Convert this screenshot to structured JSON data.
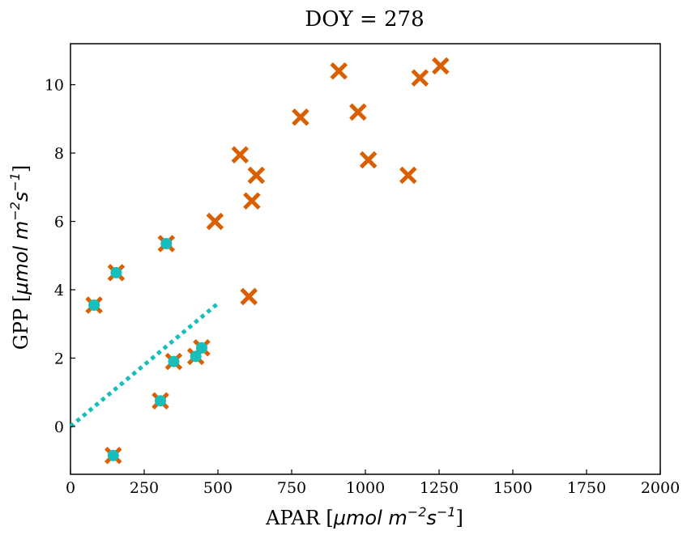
{
  "chart_data": {
    "type": "scatter",
    "title": "DOY = 278",
    "xlabel": {
      "prefix": "APAR [",
      "unit": "μmol m",
      "exp1": "−2",
      "mid": "s",
      "exp2": "−1",
      "suffix": "]"
    },
    "ylabel": {
      "prefix": "GPP [",
      "unit": "μmol m",
      "exp1": "−2",
      "mid": "s",
      "exp2": "−1",
      "suffix": "]"
    },
    "xlim": [
      0,
      2000
    ],
    "ylim": [
      -1.4,
      11.2
    ],
    "xticks": [
      0,
      250,
      500,
      750,
      1000,
      1250,
      1500,
      1750,
      2000
    ],
    "yticks": [
      0,
      2,
      4,
      6,
      8,
      10
    ],
    "grid": false,
    "colors": {
      "cross": "#d95f02",
      "dot": "#17bebb",
      "line": "#17bebb"
    },
    "series": [
      {
        "marker": "x",
        "points": [
          [
            80,
            3.55
          ],
          [
            155,
            4.5
          ],
          [
            145,
            -0.85
          ],
          [
            325,
            5.35
          ],
          [
            305,
            0.75
          ],
          [
            350,
            1.9
          ],
          [
            425,
            2.05
          ],
          [
            445,
            2.3
          ],
          [
            490,
            6.0
          ],
          [
            575,
            7.95
          ],
          [
            615,
            6.6
          ],
          [
            630,
            7.35
          ],
          [
            605,
            3.8
          ],
          [
            780,
            9.05
          ],
          [
            910,
            10.4
          ],
          [
            975,
            9.2
          ],
          [
            1010,
            7.8
          ],
          [
            1145,
            7.35
          ],
          [
            1185,
            10.2
          ],
          [
            1255,
            10.55
          ]
        ]
      },
      {
        "marker": "o",
        "points": [
          [
            80,
            3.55
          ],
          [
            155,
            4.5
          ],
          [
            145,
            -0.85
          ],
          [
            325,
            5.35
          ],
          [
            305,
            0.75
          ],
          [
            350,
            1.9
          ],
          [
            425,
            2.05
          ],
          [
            445,
            2.3
          ]
        ]
      }
    ],
    "fit_line": {
      "style": "dotted",
      "x": [
        0,
        500
      ],
      "y": [
        0,
        3.6
      ]
    }
  }
}
